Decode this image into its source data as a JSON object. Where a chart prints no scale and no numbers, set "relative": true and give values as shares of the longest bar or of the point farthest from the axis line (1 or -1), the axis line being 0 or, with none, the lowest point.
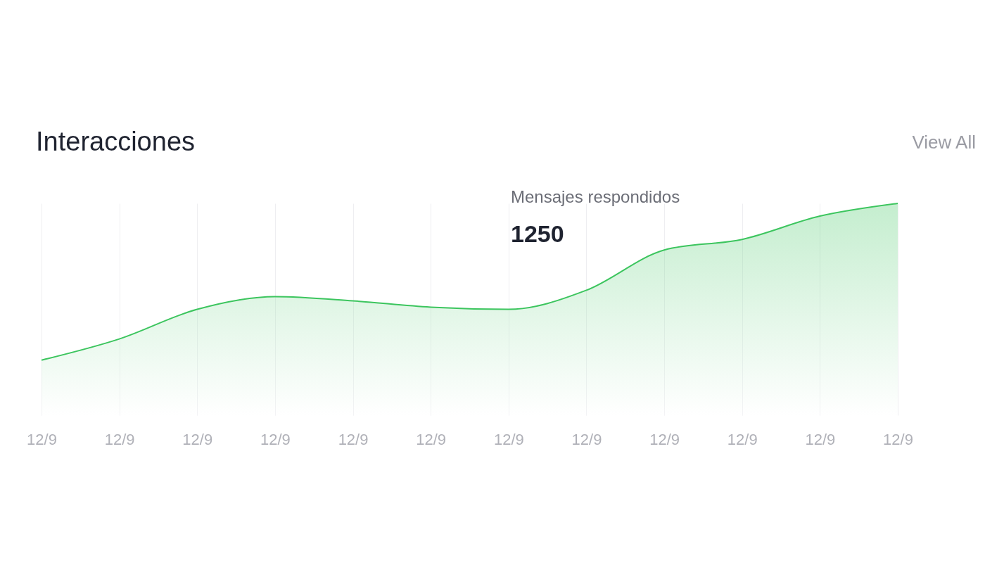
{
  "chart_data": {
    "type": "area",
    "title": "Interacciones",
    "relative": true,
    "categories": [
      "12/9",
      "12/9",
      "12/9",
      "12/9",
      "12/9",
      "12/9",
      "12/9",
      "12/9",
      "12/9",
      "12/9",
      "12/9",
      "12/9"
    ],
    "series": [
      {
        "color": "#3cc55e",
        "values": [
          0.26,
          0.36,
          0.5,
          0.56,
          0.54,
          0.51,
          0.5,
          0.59,
          0.78,
          0.83,
          0.94,
          1.0
        ]
      }
    ],
    "annotations": [
      "View All",
      "Mensajes respondidos",
      "1250"
    ],
    "grid": "x"
  }
}
